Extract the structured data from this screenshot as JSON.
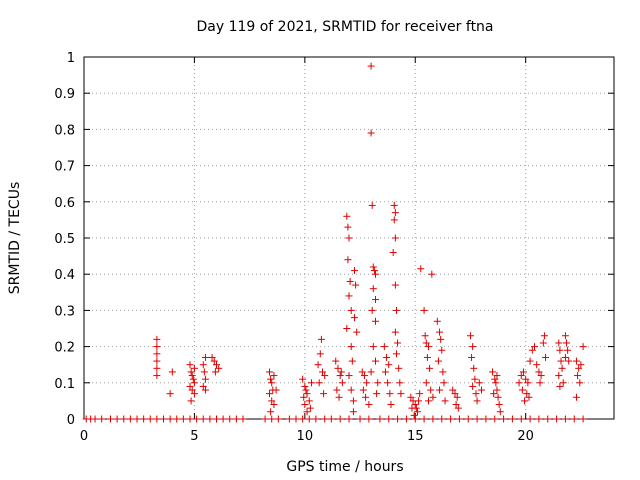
{
  "chart_data": {
    "type": "scatter",
    "title": "Day 119 of 2021, SRMTID for receiver ftna",
    "xlabel": "GPS time / hours",
    "ylabel": "SRMTID / TECUs",
    "xlim": [
      0,
      24
    ],
    "ylim": [
      0,
      1
    ],
    "xticks": [
      0,
      5,
      10,
      15,
      20
    ],
    "xtick_labels": [
      "0",
      "5",
      "10",
      "15",
      "20"
    ],
    "yticks": [
      0,
      0.1,
      0.2,
      0.3,
      0.4,
      0.5,
      0.6,
      0.7,
      0.8,
      0.9,
      1
    ],
    "ytick_labels": [
      "0",
      "0.1",
      "0.2",
      "0.3",
      "0.4",
      "0.5",
      "0.6",
      "0.7",
      "0.8",
      "0.9",
      "1"
    ],
    "grid": true,
    "marker": "+",
    "color": "#e00000",
    "series": [
      {
        "name": "SRMTID",
        "points": [
          [
            0.1,
            0
          ],
          [
            0.3,
            0
          ],
          [
            0.5,
            0
          ],
          [
            0.8,
            0
          ],
          [
            1.2,
            0
          ],
          [
            1.5,
            0
          ],
          [
            1.8,
            0
          ],
          [
            2.1,
            0
          ],
          [
            2.4,
            0
          ],
          [
            2.7,
            0
          ],
          [
            3.0,
            0
          ],
          [
            3.3,
            0
          ],
          [
            3.6,
            0
          ],
          [
            3.9,
            0
          ],
          [
            4.2,
            0
          ],
          [
            4.5,
            0
          ],
          [
            4.8,
            0
          ],
          [
            5.1,
            0
          ],
          [
            5.4,
            0
          ],
          [
            5.7,
            0
          ],
          [
            6.0,
            0
          ],
          [
            6.3,
            0
          ],
          [
            6.6,
            0
          ],
          [
            6.9,
            0
          ],
          [
            7.2,
            0
          ],
          [
            8.2,
            0
          ],
          [
            8.5,
            0
          ],
          [
            8.8,
            0
          ],
          [
            9.3,
            0
          ],
          [
            9.6,
            0
          ],
          [
            9.9,
            0
          ],
          [
            10.2,
            0
          ],
          [
            10.5,
            0
          ],
          [
            10.9,
            0
          ],
          [
            11.2,
            0
          ],
          [
            11.6,
            0
          ],
          [
            12.0,
            0
          ],
          [
            12.5,
            0
          ],
          [
            12.9,
            0
          ],
          [
            13.4,
            0
          ],
          [
            13.8,
            0
          ],
          [
            14.2,
            0
          ],
          [
            14.6,
            0
          ],
          [
            15.0,
            0
          ],
          [
            15.4,
            0
          ],
          [
            15.8,
            0
          ],
          [
            16.2,
            0
          ],
          [
            16.6,
            0
          ],
          [
            17.0,
            0
          ],
          [
            17.4,
            0
          ],
          [
            17.8,
            0
          ],
          [
            18.2,
            0
          ],
          [
            18.6,
            0
          ],
          [
            19.0,
            0
          ],
          [
            19.4,
            0
          ],
          [
            19.8,
            0
          ],
          [
            20.2,
            0
          ],
          [
            20.6,
            0
          ],
          [
            21.0,
            0
          ],
          [
            21.4,
            0
          ],
          [
            21.8,
            0
          ],
          [
            22.2,
            0
          ],
          [
            22.6,
            0
          ],
          [
            3.3,
            0.22
          ],
          [
            3.3,
            0.2
          ],
          [
            3.3,
            0.18
          ],
          [
            3.3,
            0.16
          ],
          [
            3.3,
            0.14
          ],
          [
            3.3,
            0.12
          ],
          [
            3.9,
            0.07
          ],
          [
            4.0,
            0.13
          ],
          [
            4.8,
            0.15
          ],
          [
            4.85,
            0.13
          ],
          [
            4.9,
            0.12
          ],
          [
            4.95,
            0.11
          ],
          [
            5.0,
            0.1
          ],
          [
            4.8,
            0.09
          ],
          [
            4.9,
            0.08
          ],
          [
            5.0,
            0.14
          ],
          [
            4.85,
            0.05
          ],
          [
            5.0,
            0.07
          ],
          [
            5.5,
            0.17
          ],
          [
            5.4,
            0.15
          ],
          [
            5.45,
            0.13
          ],
          [
            5.5,
            0.11
          ],
          [
            5.4,
            0.09
          ],
          [
            5.5,
            0.08
          ],
          [
            5.8,
            0.17
          ],
          [
            5.9,
            0.16
          ],
          [
            6.0,
            0.15
          ],
          [
            6.1,
            0.14
          ],
          [
            5.95,
            0.13
          ],
          [
            8.4,
            0.13
          ],
          [
            8.45,
            0.11
          ],
          [
            8.5,
            0.1
          ],
          [
            8.55,
            0.08
          ],
          [
            8.4,
            0.07
          ],
          [
            8.5,
            0.05
          ],
          [
            8.6,
            0.04
          ],
          [
            8.45,
            0.02
          ],
          [
            8.6,
            0.12
          ],
          [
            8.7,
            0.08
          ],
          [
            9.9,
            0.11
          ],
          [
            10.0,
            0.09
          ],
          [
            10.05,
            0.08
          ],
          [
            10.1,
            0.07
          ],
          [
            9.95,
            0.06
          ],
          [
            10.2,
            0.05
          ],
          [
            10.0,
            0.04
          ],
          [
            10.25,
            0.03
          ],
          [
            10.1,
            0.02
          ],
          [
            10.3,
            0.1
          ],
          [
            10.6,
            0.15
          ],
          [
            10.7,
            0.18
          ],
          [
            10.75,
            0.22
          ],
          [
            10.8,
            0.13
          ],
          [
            10.9,
            0.12
          ],
          [
            10.65,
            0.1
          ],
          [
            10.85,
            0.07
          ],
          [
            11.4,
            0.16
          ],
          [
            11.5,
            0.14
          ],
          [
            11.6,
            0.12
          ],
          [
            11.7,
            0.1
          ],
          [
            11.45,
            0.08
          ],
          [
            11.55,
            0.06
          ],
          [
            11.65,
            0.13
          ],
          [
            11.9,
            0.56
          ],
          [
            11.95,
            0.53
          ],
          [
            12.0,
            0.5
          ],
          [
            11.95,
            0.44
          ],
          [
            12.05,
            0.38
          ],
          [
            12.0,
            0.34
          ],
          [
            12.1,
            0.3
          ],
          [
            11.9,
            0.25
          ],
          [
            12.1,
            0.2
          ],
          [
            12.15,
            0.16
          ],
          [
            12.0,
            0.12
          ],
          [
            12.1,
            0.08
          ],
          [
            12.2,
            0.05
          ],
          [
            12.2,
            0.02
          ],
          [
            12.25,
            0.41
          ],
          [
            12.3,
            0.37
          ],
          [
            12.25,
            0.28
          ],
          [
            12.35,
            0.24
          ],
          [
            12.6,
            0.13
          ],
          [
            12.7,
            0.12
          ],
          [
            12.8,
            0.1
          ],
          [
            12.65,
            0.08
          ],
          [
            12.75,
            0.06
          ],
          [
            12.9,
            0.04
          ],
          [
            13.0,
            0.975
          ],
          [
            13.0,
            0.79
          ],
          [
            13.05,
            0.59
          ],
          [
            13.1,
            0.42
          ],
          [
            13.15,
            0.41
          ],
          [
            13.2,
            0.4
          ],
          [
            13.1,
            0.36
          ],
          [
            13.2,
            0.33
          ],
          [
            13.05,
            0.3
          ],
          [
            13.2,
            0.27
          ],
          [
            13.1,
            0.2
          ],
          [
            13.2,
            0.16
          ],
          [
            13.0,
            0.13
          ],
          [
            13.3,
            0.1
          ],
          [
            13.25,
            0.07
          ],
          [
            13.6,
            0.2
          ],
          [
            13.7,
            0.17
          ],
          [
            13.8,
            0.15
          ],
          [
            13.65,
            0.13
          ],
          [
            13.75,
            0.1
          ],
          [
            13.85,
            0.07
          ],
          [
            13.9,
            0.04
          ],
          [
            14.05,
            0.59
          ],
          [
            14.1,
            0.57
          ],
          [
            14.05,
            0.55
          ],
          [
            14.1,
            0.5
          ],
          [
            14.0,
            0.46
          ],
          [
            14.1,
            0.37
          ],
          [
            14.15,
            0.3
          ],
          [
            14.1,
            0.24
          ],
          [
            14.2,
            0.21
          ],
          [
            14.15,
            0.18
          ],
          [
            14.25,
            0.14
          ],
          [
            14.3,
            0.1
          ],
          [
            14.35,
            0.07
          ],
          [
            14.8,
            0.06
          ],
          [
            14.9,
            0.05
          ],
          [
            15.0,
            0.04
          ],
          [
            15.05,
            0.03
          ],
          [
            15.1,
            0.02
          ],
          [
            14.95,
            0.01
          ],
          [
            15.15,
            0.05
          ],
          [
            15.2,
            0.07
          ],
          [
            14.85,
            0.03
          ],
          [
            15.25,
            0.415
          ],
          [
            15.4,
            0.3
          ],
          [
            15.45,
            0.23
          ],
          [
            15.5,
            0.21
          ],
          [
            15.6,
            0.2
          ],
          [
            15.55,
            0.17
          ],
          [
            15.65,
            0.14
          ],
          [
            15.5,
            0.1
          ],
          [
            15.7,
            0.08
          ],
          [
            15.8,
            0.06
          ],
          [
            15.6,
            0.05
          ],
          [
            15.75,
            0.4
          ],
          [
            16.0,
            0.27
          ],
          [
            16.1,
            0.24
          ],
          [
            16.15,
            0.22
          ],
          [
            16.2,
            0.19
          ],
          [
            16.05,
            0.16
          ],
          [
            16.25,
            0.13
          ],
          [
            16.3,
            0.1
          ],
          [
            16.1,
            0.08
          ],
          [
            16.35,
            0.05
          ],
          [
            16.7,
            0.08
          ],
          [
            16.8,
            0.07
          ],
          [
            16.9,
            0.06
          ],
          [
            16.85,
            0.04
          ],
          [
            16.95,
            0.03
          ],
          [
            17.5,
            0.23
          ],
          [
            17.6,
            0.2
          ],
          [
            17.55,
            0.17
          ],
          [
            17.65,
            0.14
          ],
          [
            17.7,
            0.11
          ],
          [
            17.6,
            0.09
          ],
          [
            17.75,
            0.07
          ],
          [
            17.8,
            0.05
          ],
          [
            17.9,
            0.1
          ],
          [
            18.0,
            0.08
          ],
          [
            18.5,
            0.13
          ],
          [
            18.6,
            0.11
          ],
          [
            18.65,
            0.1
          ],
          [
            18.7,
            0.08
          ],
          [
            18.55,
            0.07
          ],
          [
            18.75,
            0.06
          ],
          [
            18.8,
            0.04
          ],
          [
            18.85,
            0.02
          ],
          [
            18.7,
            0.12
          ],
          [
            19.7,
            0.1
          ],
          [
            19.8,
            0.12
          ],
          [
            19.9,
            0.13
          ],
          [
            20.0,
            0.11
          ],
          [
            20.1,
            0.1
          ],
          [
            19.85,
            0.08
          ],
          [
            20.05,
            0.07
          ],
          [
            20.15,
            0.06
          ],
          [
            19.95,
            0.05
          ],
          [
            20.2,
            0.16
          ],
          [
            20.3,
            0.19
          ],
          [
            20.4,
            0.2
          ],
          [
            20.5,
            0.15
          ],
          [
            20.6,
            0.13
          ],
          [
            20.7,
            0.12
          ],
          [
            20.8,
            0.21
          ],
          [
            20.85,
            0.23
          ],
          [
            20.9,
            0.17
          ],
          [
            20.65,
            0.1
          ],
          [
            21.5,
            0.21
          ],
          [
            21.55,
            0.19
          ],
          [
            21.6,
            0.16
          ],
          [
            21.65,
            0.14
          ],
          [
            21.5,
            0.12
          ],
          [
            21.7,
            0.1
          ],
          [
            21.55,
            0.09
          ],
          [
            21.8,
            0.23
          ],
          [
            21.85,
            0.21
          ],
          [
            21.9,
            0.19
          ],
          [
            21.8,
            0.17
          ],
          [
            21.95,
            0.16
          ],
          [
            22.3,
            0.16
          ],
          [
            22.4,
            0.14
          ],
          [
            22.35,
            0.12
          ],
          [
            22.45,
            0.1
          ],
          [
            22.3,
            0.06
          ],
          [
            22.6,
            0.2
          ],
          [
            22.5,
            0.15
          ]
        ]
      }
    ]
  }
}
